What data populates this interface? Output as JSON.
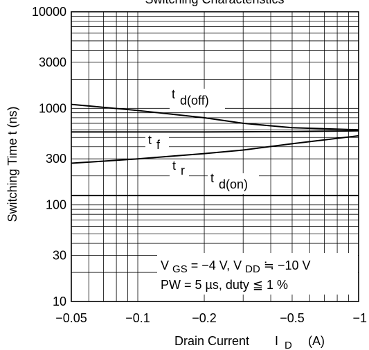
{
  "chart_data": {
    "type": "line",
    "title": "Switching Characteristics",
    "xlabel": "Drain Current",
    "xlabel_symbol": "I",
    "xlabel_sub": "D",
    "xlabel_unit": "(A)",
    "ylabel": "Switching Time  t  (ns)",
    "x_scale": "log",
    "y_scale": "log",
    "xlim": [
      0.05,
      1
    ],
    "ylim": [
      10,
      10000
    ],
    "x_ticks": [
      {
        "value": 0.05,
        "label": "−0.05"
      },
      {
        "value": 0.1,
        "label": "−0.1"
      },
      {
        "value": 0.2,
        "label": "−0.2"
      },
      {
        "value": 0.5,
        "label": "−0.5"
      },
      {
        "value": 1,
        "label": "−1"
      }
    ],
    "y_ticks": [
      {
        "value": 10,
        "label": "10"
      },
      {
        "value": 30,
        "label": "30"
      },
      {
        "value": 100,
        "label": "100"
      },
      {
        "value": 300,
        "label": "300"
      },
      {
        "value": 1000,
        "label": "1000"
      },
      {
        "value": 3000,
        "label": "3000"
      },
      {
        "value": 10000,
        "label": "10000"
      }
    ],
    "grid": true,
    "series": [
      {
        "name": "t d(off)",
        "x": [
          0.05,
          0.1,
          0.2,
          0.3,
          0.5,
          1.0
        ],
        "y": [
          1100,
          950,
          800,
          700,
          630,
          600
        ]
      },
      {
        "name": "t f",
        "x": [
          0.05,
          0.1,
          0.2,
          0.5,
          1.0
        ],
        "y": [
          570,
          570,
          570,
          575,
          585
        ]
      },
      {
        "name": "t r",
        "x": [
          0.05,
          0.1,
          0.2,
          0.3,
          0.5,
          1.0
        ],
        "y": [
          270,
          300,
          340,
          370,
          430,
          520
        ]
      },
      {
        "name": "t d(on)",
        "x": [
          0.05,
          0.1,
          0.2,
          0.5,
          1.0
        ],
        "y": [
          125,
          125,
          125,
          125,
          125
        ]
      }
    ],
    "curve_labels": [
      {
        "main": "t",
        "sub": "d(off)"
      },
      {
        "main": "t",
        "sub": "f"
      },
      {
        "main": "t",
        "sub": "r"
      },
      {
        "main": "t",
        "sub": "d(on)"
      }
    ],
    "annotations": {
      "line1": "V",
      "line1_sub_gs": "GS",
      "line1_mid": " = −4 V, V",
      "line1_sub_dd": "DD",
      "line1_end": " ≒ −10 V",
      "line2": "PW = 5 µs, duty ≦ 1 %"
    }
  }
}
